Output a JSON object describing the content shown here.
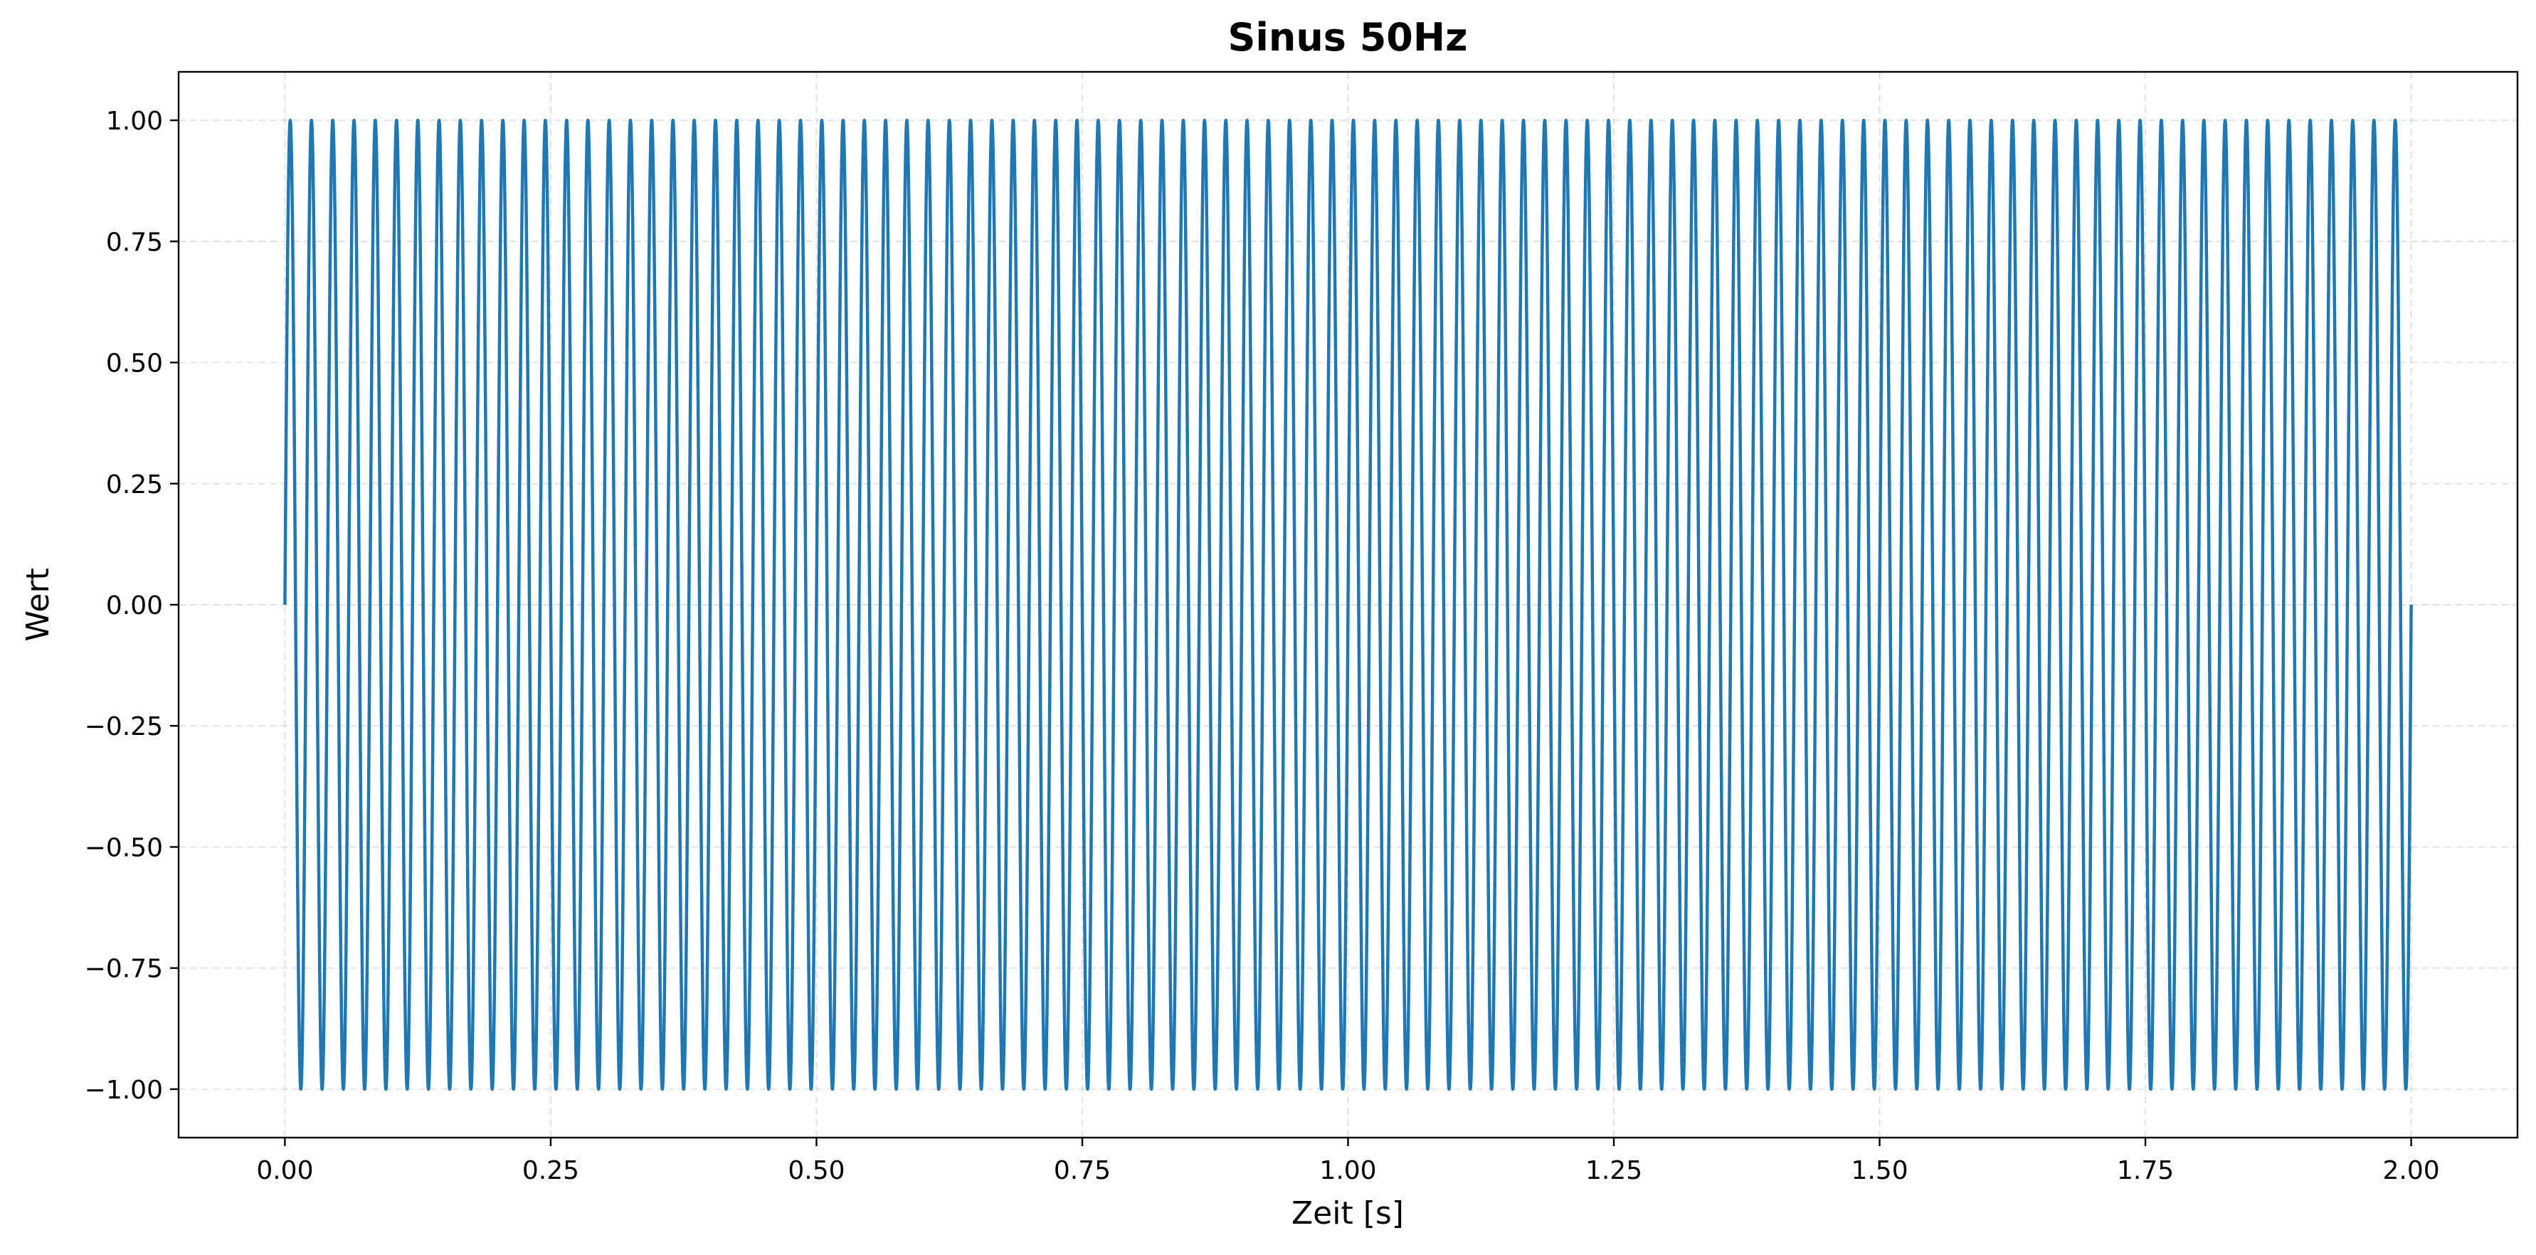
{
  "chart_data": {
    "type": "line",
    "title": "Sinus 50Hz",
    "xlabel": "Zeit [s]",
    "ylabel": "Wert",
    "xlim": [
      -0.1,
      2.1
    ],
    "ylim": [
      -1.1,
      1.1
    ],
    "x_ticks": [
      0.0,
      0.25,
      0.5,
      0.75,
      1.0,
      1.25,
      1.5,
      1.75,
      2.0
    ],
    "x_tick_labels": [
      "0.00",
      "0.25",
      "0.50",
      "0.75",
      "1.00",
      "1.25",
      "1.50",
      "1.75",
      "2.00"
    ],
    "y_ticks": [
      -1.0,
      -0.75,
      -0.5,
      -0.25,
      0.0,
      0.25,
      0.5,
      0.75,
      1.0
    ],
    "y_tick_labels": [
      "−1.00",
      "−0.75",
      "−0.50",
      "−0.25",
      "0.00",
      "0.25",
      "0.50",
      "0.75",
      "1.00"
    ],
    "grid": true,
    "series": [
      {
        "function": "sin(2*pi*50*x)",
        "frequency_hz": 50,
        "amplitude": 1.0,
        "x_start": 0.0,
        "x_end": 2.0,
        "color": "#1f77b4"
      }
    ]
  }
}
